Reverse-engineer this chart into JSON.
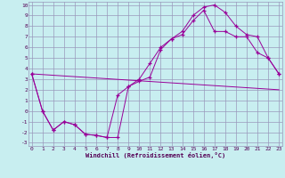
{
  "xlabel": "Windchill (Refroidissement éolien,°C)",
  "xlim": [
    0,
    23
  ],
  "ylim": [
    -3,
    10
  ],
  "xticks": [
    0,
    1,
    2,
    3,
    4,
    5,
    6,
    7,
    8,
    9,
    10,
    11,
    12,
    13,
    14,
    15,
    16,
    17,
    18,
    19,
    20,
    21,
    22,
    23
  ],
  "yticks": [
    -3,
    -2,
    -1,
    0,
    1,
    2,
    3,
    4,
    5,
    6,
    7,
    8,
    9,
    10
  ],
  "bg_color": "#c8eef0",
  "line_color": "#990099",
  "grid_color": "#9999bb",
  "line1_x": [
    0,
    1,
    2,
    3,
    4,
    5,
    6,
    7,
    8,
    9,
    10,
    11,
    12,
    13,
    14,
    15,
    16,
    17,
    18,
    19,
    20,
    21,
    22,
    23
  ],
  "line1_y": [
    3.5,
    0.0,
    -1.8,
    -1.0,
    -1.3,
    -2.2,
    -2.3,
    -2.5,
    -2.5,
    2.3,
    2.8,
    3.2,
    5.8,
    6.8,
    7.5,
    9.0,
    9.8,
    10.0,
    9.3,
    8.0,
    7.2,
    7.0,
    5.0,
    3.5
  ],
  "line2_x": [
    0,
    1,
    2,
    3,
    4,
    5,
    6,
    7,
    8,
    9,
    10,
    11,
    12,
    13,
    14,
    15,
    16,
    17,
    18,
    19,
    20,
    21,
    22,
    23
  ],
  "line2_y": [
    3.5,
    0.0,
    -1.8,
    -1.0,
    -1.3,
    -2.2,
    -2.3,
    -2.5,
    1.5,
    2.3,
    3.0,
    4.5,
    6.0,
    6.8,
    7.2,
    8.5,
    9.5,
    7.5,
    7.5,
    7.0,
    7.0,
    5.5,
    5.0,
    3.5
  ],
  "line3_x": [
    0,
    23
  ],
  "line3_y": [
    3.5,
    2.0
  ]
}
